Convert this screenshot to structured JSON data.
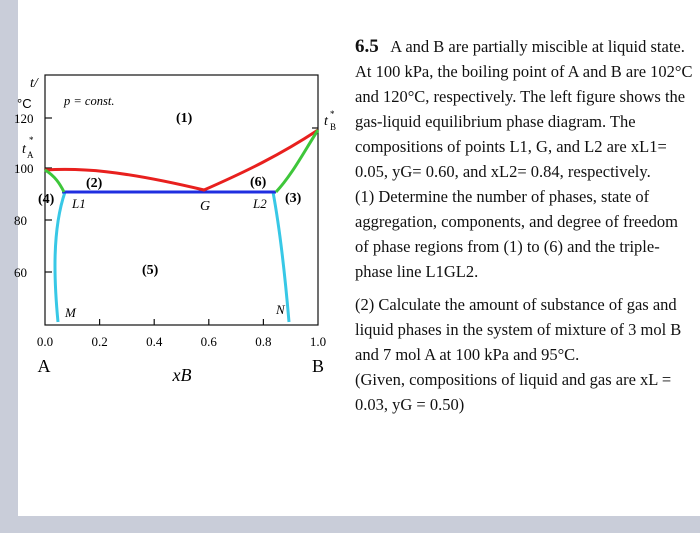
{
  "diagram": {
    "axis": {
      "y_unit_top": "t/",
      "y_unit_bottom": "°C",
      "y_ticks": [
        "120",
        "100",
        "80",
        "60"
      ],
      "tA_label": "t",
      "tA_sub": "A",
      "tB_label": "t",
      "tB_sub": "B",
      "x_ticks": [
        "0.0",
        "0.2",
        "0.4",
        "0.6",
        "0.8",
        "1.0"
      ],
      "x_label": "xB",
      "left_end": "A",
      "right_end": "B"
    },
    "pressure_note": "p = const.",
    "regions": [
      "(1)",
      "(2)",
      "(3)",
      "(4)",
      "(5)",
      "(6)"
    ],
    "points": [
      "L1",
      "G",
      "L2",
      "M",
      "N"
    ],
    "colors": {
      "vapor_curve": "#e8201e",
      "liquid_curve": "#3ec63a",
      "solubility_curve": "#38c8e6",
      "three_phase_line": "#1f2ee0"
    }
  },
  "problem": {
    "number": "6.5",
    "intro": "A and B are partially miscible at liquid state. At 100 kPa, the boiling point of A and B are 102°C and 120°C, respectively. The left figure shows the gas-liquid equilibrium phase diagram. The compositions of points L1, G, and L2 are xL1= 0.05, yG= 0.60, and xL2= 0.84, respectively.",
    "q1_num": "(1)",
    "q1": "Determine the number of phases, state of aggregation, components, and degree of freedom of phase regions from (1) to (6) and the triple-phase line L1GL2.",
    "q2_num": "(2)",
    "q2": "Calculate the amount of substance of gas and liquid phases in the system of mixture of 3 mol B and 7 mol A at 100 kPa and 95°C.",
    "given": "(Given, compositions of liquid and gas are xL = 0.03, yG = 0.50)"
  }
}
